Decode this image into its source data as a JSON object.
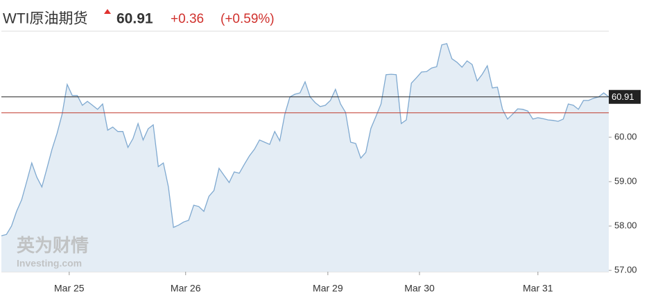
{
  "header": {
    "title": "WTI原油期货",
    "price": "60.91",
    "change": "+0.36",
    "change_pct": "(+0.59%)"
  },
  "watermark": {
    "brand": "英为财情",
    "site": "Investing.com"
  },
  "chart_data": {
    "type": "area",
    "color": "#7fa9d0",
    "fill": "#e4edf5",
    "values": [
      57.78,
      57.81,
      58.0,
      58.33,
      58.59,
      59.0,
      59.42,
      59.1,
      58.88,
      59.3,
      59.73,
      60.09,
      60.52,
      61.19,
      60.94,
      60.94,
      60.72,
      60.81,
      60.72,
      60.63,
      60.75,
      60.16,
      60.23,
      60.13,
      60.13,
      59.77,
      59.97,
      60.31,
      59.94,
      60.19,
      60.28,
      59.34,
      59.42,
      58.88,
      57.97,
      58.02,
      58.09,
      58.13,
      58.47,
      58.44,
      58.33,
      58.67,
      58.8,
      59.3,
      59.14,
      58.98,
      59.22,
      59.19,
      59.39,
      59.58,
      59.73,
      59.94,
      59.89,
      59.84,
      60.13,
      59.92,
      60.52,
      60.91,
      60.97,
      61.0,
      61.25,
      60.91,
      60.78,
      60.69,
      60.72,
      60.83,
      61.08,
      60.75,
      60.56,
      59.89,
      59.86,
      59.53,
      59.66,
      60.2,
      60.47,
      60.75,
      61.41,
      61.42,
      61.41,
      60.31,
      60.39,
      61.22,
      61.34,
      61.47,
      61.48,
      61.56,
      61.59,
      62.08,
      62.11,
      61.77,
      61.69,
      61.58,
      61.72,
      61.64,
      61.27,
      61.42,
      61.61,
      61.11,
      61.13,
      60.63,
      60.41,
      60.52,
      60.64,
      60.63,
      60.59,
      60.41,
      60.44,
      60.42,
      60.39,
      60.38,
      60.36,
      60.41,
      60.75,
      60.72,
      60.63,
      60.83,
      60.83,
      60.88,
      60.91,
      61.0,
      60.91
    ],
    "last": {
      "value": 60.91,
      "label": "60.91"
    },
    "previous_close": 60.55,
    "ylim": [
      56.97,
      62.39
    ],
    "yticks": [
      {
        "value": 57,
        "label": "57.00"
      },
      {
        "value": 58,
        "label": "58.00"
      },
      {
        "value": 59,
        "label": "59.00"
      },
      {
        "value": 60,
        "label": "60.00"
      }
    ],
    "xticks": [
      {
        "value": 13.4,
        "label": "Mar 25"
      },
      {
        "value": 36.4,
        "label": "Mar 26"
      },
      {
        "value": 64.5,
        "label": "Mar 29"
      },
      {
        "value": 82.6,
        "label": "Mar 30"
      },
      {
        "value": 106,
        "label": "Mar 31"
      }
    ]
  }
}
